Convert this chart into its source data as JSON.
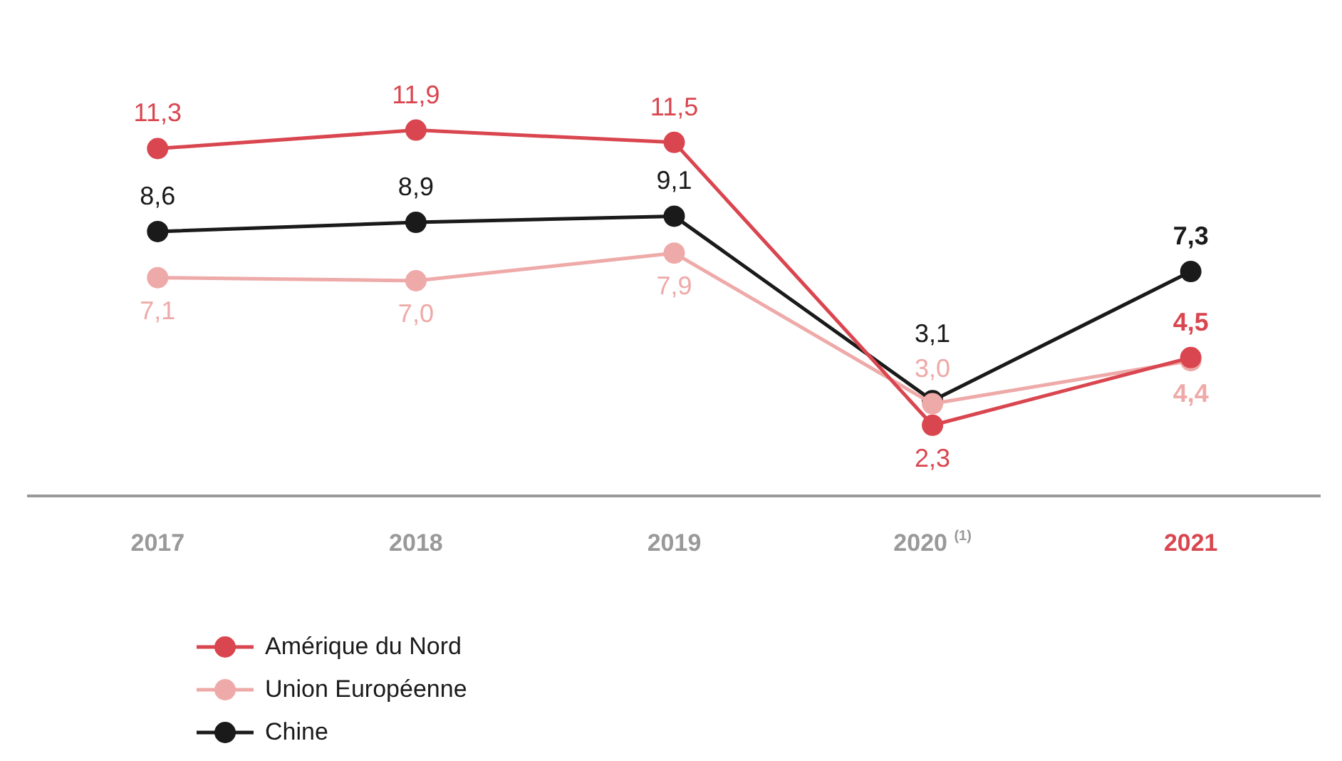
{
  "chart_data": {
    "type": "line",
    "categories": [
      "2017",
      "2018",
      "2019",
      "2020 $^{(1)}$",
      "2021"
    ],
    "series": [
      {
        "name": "Amérique du Nord",
        "color": "#d9464f",
        "values": [
          11.3,
          11.9,
          11.5,
          2.3,
          4.5
        ],
        "value_labels": [
          "11,3",
          "11,9",
          "11,5",
          "2,3",
          "4,5"
        ]
      },
      {
        "name": "Union Européenne",
        "color": "#eeaaa8",
        "values": [
          7.1,
          7.0,
          7.9,
          3.0,
          4.4
        ],
        "value_labels": [
          "7,1",
          "7,0",
          "7,9",
          "3,0",
          "4,4"
        ]
      },
      {
        "name": "Chine",
        "color": "#1a1a1a",
        "values": [
          8.6,
          8.9,
          9.1,
          3.1,
          7.3
        ],
        "value_labels": [
          "8,6",
          "8,9",
          "9,1",
          "3,1",
          "7,3"
        ]
      }
    ],
    "legend": "bottom left",
    "marker": "circle",
    "line_style": "solid",
    "grid": false
  }
}
